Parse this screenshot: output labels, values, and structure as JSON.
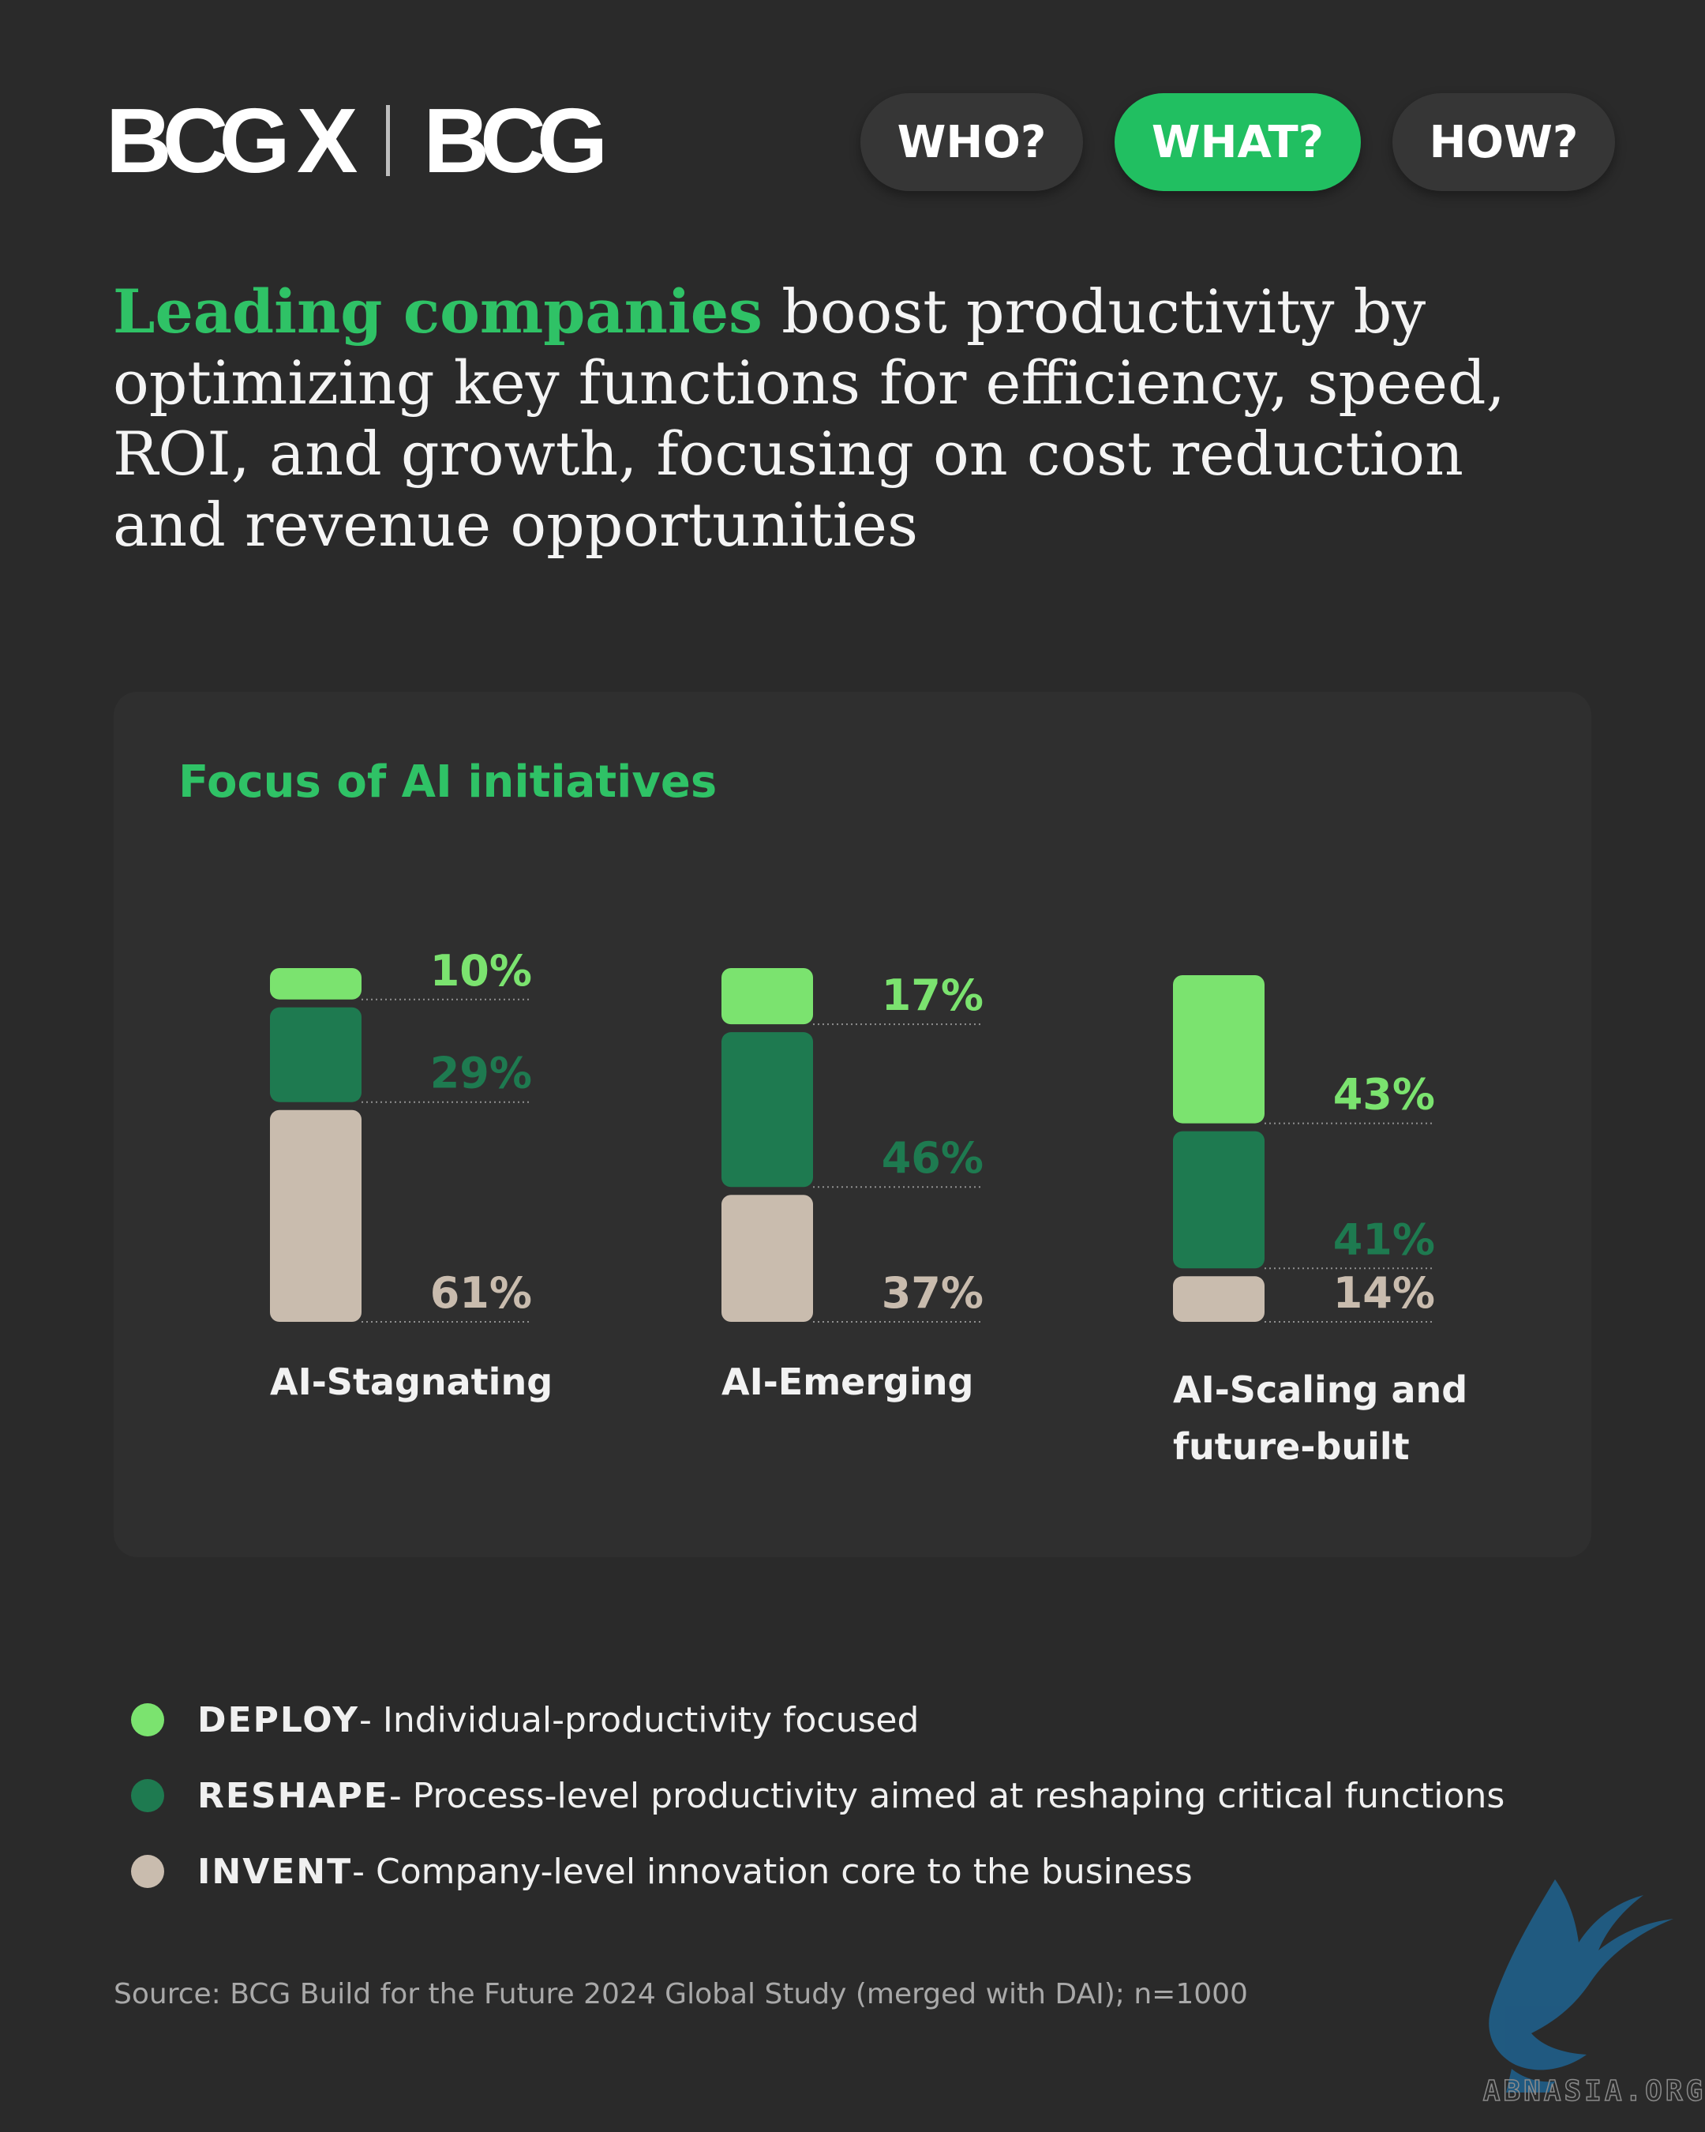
{
  "header": {
    "logo_primary": "BCG X",
    "logo_secondary": "BCG",
    "nav": [
      {
        "label": "WHO?",
        "active": false
      },
      {
        "label": "WHAT?",
        "active": true
      },
      {
        "label": "HOW?",
        "active": false
      }
    ]
  },
  "headline": {
    "highlight": "Leading companies",
    "rest": " boost productivity by optimizing key functions for efficiency, speed, ROI, and growth, focusing on cost reduction and revenue opportunities"
  },
  "colors": {
    "deploy": "#7be36f",
    "reshape": "#1e7a50",
    "invent": "#c9bcae",
    "accent": "#21bf61"
  },
  "chart_data": {
    "type": "bar",
    "stacked": true,
    "title": "Focus of AI initiatives",
    "categories": [
      "AI-Stagnating",
      "AI-Emerging",
      "AI-Scaling and future-built"
    ],
    "series": [
      {
        "name": "DEPLOY",
        "values": [
          10,
          17,
          43
        ]
      },
      {
        "name": "RESHAPE",
        "values": [
          29,
          46,
          41
        ]
      },
      {
        "name": "INVENT",
        "values": [
          61,
          37,
          14
        ]
      }
    ],
    "value_labels": [
      [
        "10%",
        "29%",
        "61%"
      ],
      [
        "17%",
        "46%",
        "37%"
      ],
      [
        "43%",
        "41%",
        "14%"
      ]
    ],
    "units": "%",
    "ylim": [
      0,
      100
    ]
  },
  "legend": [
    {
      "key": "DEPLOY",
      "desc": " - Individual-productivity focused"
    },
    {
      "key": "RESHAPE",
      "desc": " - Process-level productivity aimed at reshaping critical functions"
    },
    {
      "key": "INVENT",
      "desc": " - Company-level innovation core to the business"
    }
  ],
  "source": "Source: BCG Build for the Future 2024 Global Study (merged with DAI); n=1000",
  "watermark": {
    "text": "ABNASIA.ORG",
    "icon": "griffin-icon"
  }
}
